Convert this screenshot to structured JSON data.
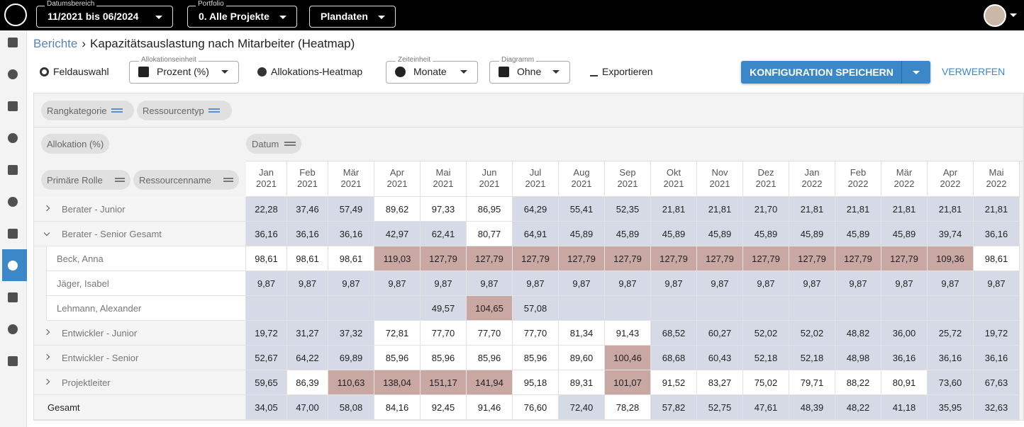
{
  "topbar": {
    "filters": [
      {
        "label": "Datumsbereich",
        "value": "11/2021 bis 06/2024"
      },
      {
        "label": "Portfolio",
        "value": "0. Alle Projekte"
      },
      {
        "value": "Plandaten"
      }
    ]
  },
  "breadcrumb": {
    "parent": "Berichte",
    "current": "Kapazitätsauslastung nach Mitarbeiter (Heatmap)"
  },
  "toolbar": {
    "field_selection": "Feldauswahl",
    "allocation_unit": {
      "label": "Allokationseinheit",
      "value": "Prozent (%)"
    },
    "heatmap": "Allokations-Heatmap",
    "time_unit": {
      "label": "Zeiteinheit",
      "value": "Monate"
    },
    "diagram": {
      "label": "Diagramm",
      "value": "Ohne"
    },
    "export": "Exportieren",
    "save": "KONFIGURATION SPEICHERN",
    "discard": "VERWERFEN"
  },
  "pivot": {
    "filter_fields": [
      "Rangkategorie",
      "Ressourcentyp"
    ],
    "value_field": "Allokation (%)",
    "column_field": "Datum",
    "row_fields": [
      "Primäre Rolle",
      "Ressourcenname"
    ]
  },
  "table": {
    "columns": [
      {
        "month": "Jan",
        "year": "2021"
      },
      {
        "month": "Feb",
        "year": "2021"
      },
      {
        "month": "Mär",
        "year": "2021"
      },
      {
        "month": "Apr",
        "year": "2021"
      },
      {
        "month": "Mai",
        "year": "2021"
      },
      {
        "month": "Jun",
        "year": "2021"
      },
      {
        "month": "Jul",
        "year": "2021"
      },
      {
        "month": "Aug",
        "year": "2021"
      },
      {
        "month": "Sep",
        "year": "2021"
      },
      {
        "month": "Okt",
        "year": "2021"
      },
      {
        "month": "Nov",
        "year": "2021"
      },
      {
        "month": "Dez",
        "year": "2021"
      },
      {
        "month": "Jan",
        "year": "2022"
      },
      {
        "month": "Feb",
        "year": "2022"
      },
      {
        "month": "Mär",
        "year": "2022"
      },
      {
        "month": "Apr",
        "year": "2022"
      },
      {
        "month": "Mai",
        "year": "2022"
      }
    ],
    "rows": [
      {
        "label": "Berater - Junior",
        "expanded": false,
        "values": [
          "22,28",
          "37,46",
          "57,49",
          "89,62",
          "97,33",
          "86,95",
          "64,29",
          "55,41",
          "52,35",
          "21,81",
          "21,81",
          "21,70",
          "21,81",
          "21,81",
          "21,81",
          "21,81",
          "21,81"
        ],
        "colors": [
          "#d6dae6",
          "#d6dae6",
          "#d6dae6",
          "#ffffff",
          "#ffffff",
          "#ffffff",
          "#d6dae6",
          "#d6dae6",
          "#d6dae6",
          "#d6dae6",
          "#d6dae6",
          "#d6dae6",
          "#d6dae6",
          "#d6dae6",
          "#d6dae6",
          "#d6dae6",
          "#d6dae6"
        ]
      },
      {
        "label": "Berater - Senior Gesamt",
        "expanded": true,
        "values": [
          "36,16",
          "36,16",
          "36,16",
          "42,97",
          "62,41",
          "80,77",
          "64,91",
          "45,89",
          "45,89",
          "45,89",
          "45,89",
          "45,89",
          "45,89",
          "45,89",
          "45,89",
          "39,74",
          "36,16"
        ],
        "colors": [
          "#d6dae6",
          "#d6dae6",
          "#d6dae6",
          "#d6dae6",
          "#d6dae6",
          "#ffffff",
          "#d6dae6",
          "#d6dae6",
          "#d6dae6",
          "#d6dae6",
          "#d6dae6",
          "#d6dae6",
          "#d6dae6",
          "#d6dae6",
          "#d6dae6",
          "#d6dae6",
          "#d6dae6"
        ]
      },
      {
        "label": "Beck, Anna",
        "values": [
          "98,61",
          "98,61",
          "98,61",
          "119,03",
          "127,79",
          "127,79",
          "127,79",
          "127,79",
          "127,79",
          "127,79",
          "127,79",
          "127,79",
          "127,79",
          "127,79",
          "127,79",
          "109,36",
          "98,61"
        ],
        "colors": [
          "#ffffff",
          "#ffffff",
          "#ffffff",
          "#c9a8a3",
          "#c9a8a3",
          "#c9a8a3",
          "#c9a8a3",
          "#c9a8a3",
          "#c9a8a3",
          "#c9a8a3",
          "#c9a8a3",
          "#c9a8a3",
          "#c9a8a3",
          "#c9a8a3",
          "#c9a8a3",
          "#c9a8a3",
          "#ffffff"
        ]
      },
      {
        "label": "Jäger, Isabel",
        "values": [
          "9,87",
          "9,87",
          "9,87",
          "9,87",
          "9,87",
          "9,87",
          "9,87",
          "9,87",
          "9,87",
          "9,87",
          "9,87",
          "9,87",
          "9,87",
          "9,87",
          "9,87",
          "9,87",
          "9,87"
        ],
        "colors": [
          "#d6dae6",
          "#d6dae6",
          "#d6dae6",
          "#d6dae6",
          "#d6dae6",
          "#d6dae6",
          "#d6dae6",
          "#d6dae6",
          "#d6dae6",
          "#d6dae6",
          "#d6dae6",
          "#d6dae6",
          "#d6dae6",
          "#d6dae6",
          "#d6dae6",
          "#d6dae6",
          "#d6dae6"
        ]
      },
      {
        "label": "Lehmann, Alexander",
        "values": [
          null,
          null,
          null,
          null,
          "49,57",
          "104,65",
          "57,08",
          null,
          null,
          null,
          null,
          null,
          null,
          null,
          null,
          null,
          null
        ],
        "colors": [
          "#d6dae6",
          "#d6dae6",
          "#d6dae6",
          "#d6dae6",
          "#d6dae6",
          "#c9a8a3",
          "#d6dae6",
          "#d6dae6",
          "#d6dae6",
          "#d6dae6",
          "#d6dae6",
          "#d6dae6",
          "#d6dae6",
          "#d6dae6",
          "#d6dae6",
          "#d6dae6",
          "#d6dae6"
        ]
      },
      {
        "label": "Entwickler - Junior",
        "expanded": false,
        "values": [
          "19,72",
          "31,27",
          "37,32",
          "72,81",
          "77,70",
          "77,70",
          "77,70",
          "81,34",
          "91,43",
          "68,52",
          "60,27",
          "52,02",
          "52,02",
          "48,82",
          "36,00",
          "25,72",
          "19,72"
        ],
        "colors": [
          "#d6dae6",
          "#d6dae6",
          "#d6dae6",
          "#ffffff",
          "#ffffff",
          "#ffffff",
          "#ffffff",
          "#ffffff",
          "#ffffff",
          "#d6dae6",
          "#d6dae6",
          "#d6dae6",
          "#d6dae6",
          "#d6dae6",
          "#d6dae6",
          "#d6dae6",
          "#d6dae6"
        ]
      },
      {
        "label": "Entwickler - Senior",
        "expanded": false,
        "values": [
          "52,67",
          "64,22",
          "69,89",
          "85,96",
          "85,96",
          "85,96",
          "85,96",
          "89,60",
          "100,46",
          "68,68",
          "60,43",
          "52,18",
          "52,18",
          "48,98",
          "36,16",
          "36,16",
          "36,16"
        ],
        "colors": [
          "#d6dae6",
          "#d6dae6",
          "#d6dae6",
          "#ffffff",
          "#ffffff",
          "#ffffff",
          "#ffffff",
          "#ffffff",
          "#c9a8a3",
          "#d6dae6",
          "#d6dae6",
          "#d6dae6",
          "#d6dae6",
          "#d6dae6",
          "#d6dae6",
          "#d6dae6",
          "#d6dae6"
        ]
      },
      {
        "label": "Projektleiter",
        "expanded": false,
        "values": [
          "59,65",
          "86,39",
          "110,63",
          "138,04",
          "151,17",
          "141,94",
          "95,18",
          "89,31",
          "101,07",
          "91,52",
          "83,27",
          "75,02",
          "79,71",
          "88,22",
          "80,91",
          "73,60",
          "67,63"
        ],
        "colors": [
          "#d6dae6",
          "#ffffff",
          "#c9a8a3",
          "#c9a8a3",
          "#c9a8a3",
          "#c9a8a3",
          "#ffffff",
          "#ffffff",
          "#c9a8a3",
          "#ffffff",
          "#ffffff",
          "#ffffff",
          "#ffffff",
          "#ffffff",
          "#ffffff",
          "#d6dae6",
          "#d6dae6"
        ]
      },
      {
        "label": "Gesamt",
        "total": true,
        "values": [
          "34,05",
          "47,00",
          "58,08",
          "84,16",
          "92,45",
          "91,46",
          "76,60",
          "72,40",
          "78,28",
          "57,82",
          "52,75",
          "47,61",
          "48,39",
          "48,22",
          "41,18",
          "35,95",
          "32,63"
        ],
        "colors": [
          "#d6dae6",
          "#d6dae6",
          "#d6dae6",
          "#ffffff",
          "#ffffff",
          "#ffffff",
          "#ffffff",
          "#d6dae6",
          "#ffffff",
          "#d6dae6",
          "#d6dae6",
          "#d6dae6",
          "#d6dae6",
          "#d6dae6",
          "#d6dae6",
          "#d6dae6",
          "#d6dae6"
        ]
      }
    ]
  }
}
